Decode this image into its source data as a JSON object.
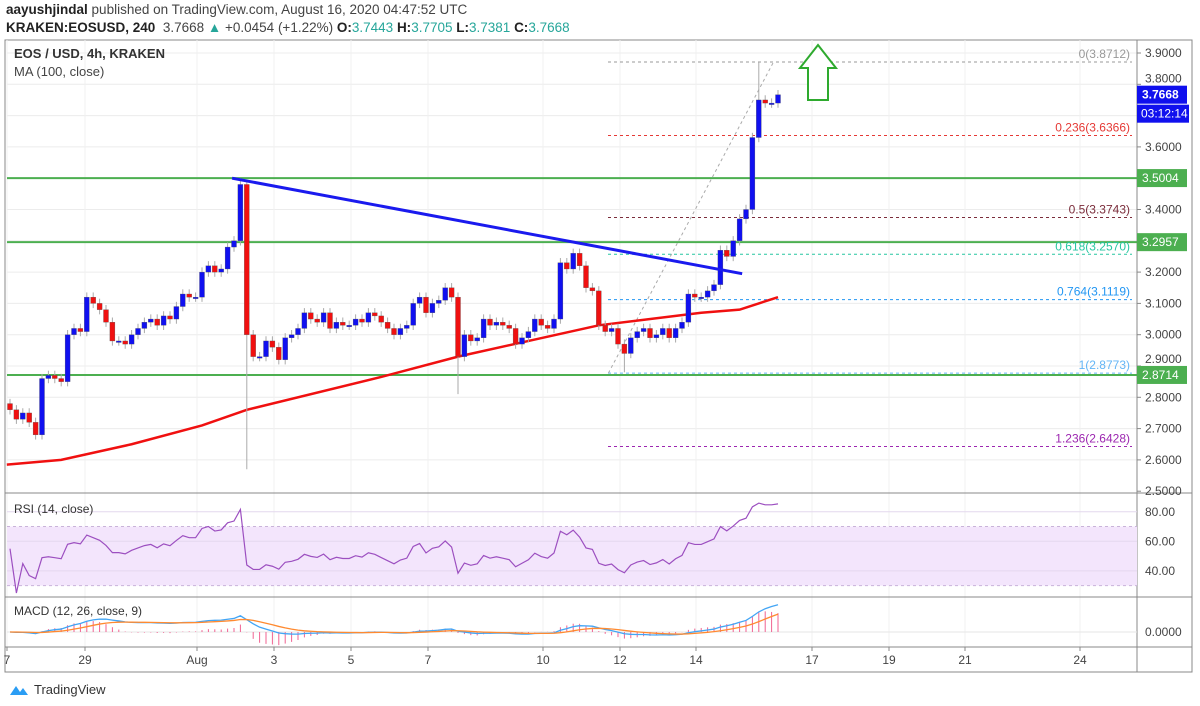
{
  "header": {
    "author": "aayushjindal",
    "published": "published on TradingView.com, August 16, 2020 04:47:52 UTC",
    "symbol": "KRAKEN:EOSUSD, 240",
    "last": "3.7668",
    "change": "+0.0454 (+1.22%)",
    "o_label": "O:",
    "o": "3.7443",
    "h_label": "H:",
    "h": "3.7705",
    "l_label": "L:",
    "l": "3.7381",
    "c_label": "C:",
    "c": "3.7668",
    "up_icon": "triangle-up"
  },
  "legend": {
    "title": "EOS / USD, 4h, KRAKEN",
    "ma": "MA (100, close)",
    "rsi": "RSI (14, close)",
    "macd": "MACD (12, 26, close, 9)"
  },
  "price_axis": {
    "ticks": [
      "3.9000",
      "3.8000",
      "3.6000",
      "3.4000",
      "3.2000",
      "3.1000",
      "3.0000",
      "2.9000",
      "2.8000",
      "2.7000",
      "2.6000",
      "2.5000"
    ],
    "current_price": "3.7668",
    "countdown": "03:12:14",
    "levels": [
      {
        "label": "3.5004",
        "value": 3.5004
      },
      {
        "label": "3.2957",
        "value": 3.2957
      },
      {
        "label": "2.8714",
        "value": 2.8714
      }
    ]
  },
  "rsi_axis": {
    "ticks": [
      "80.00",
      "60.00",
      "40.00"
    ]
  },
  "macd_axis": {
    "ticks": [
      "0.0000"
    ]
  },
  "time_axis": {
    "ticks": [
      "7",
      "29",
      "Aug",
      "3",
      "5",
      "7",
      "10",
      "12",
      "14",
      "17",
      "19",
      "21",
      "24"
    ]
  },
  "fib_levels": [
    {
      "label": "0(3.8712)",
      "value": 3.8712,
      "color": "#999999"
    },
    {
      "label": "0.236(3.6366)",
      "value": 3.6366,
      "color": "#e53935"
    },
    {
      "label": "0.5(3.3743)",
      "value": 3.3743,
      "color": "#7b2d3b"
    },
    {
      "label": "0.618(3.2570)",
      "value": 3.257,
      "color": "#26c6a0"
    },
    {
      "label": "0.764(3.1119)",
      "value": 3.1119,
      "color": "#2196f3"
    },
    {
      "label": "1(2.8773)",
      "value": 2.8773,
      "color": "#64b5f6"
    },
    {
      "label": "1.236(2.6428)",
      "value": 2.6428,
      "color": "#9c27b0"
    }
  ],
  "colors": {
    "up": "#1010f0",
    "down": "#f01010",
    "ma": "#f01010",
    "support": "#4caf50",
    "trendline": "#1a1aee",
    "rsi": "#9c4fc0",
    "rsi_band": "#f3e5fc",
    "macd": "#42a5f5",
    "signal": "#ff8a30",
    "hist": "#f06292",
    "arrow": "#2eaa2e"
  },
  "chart_data": {
    "type": "candlestick",
    "closes": [
      2.76,
      2.73,
      2.75,
      2.72,
      2.68,
      2.86,
      2.87,
      2.86,
      2.85,
      3.0,
      3.02,
      3.01,
      3.12,
      3.1,
      3.08,
      3.04,
      2.98,
      2.98,
      2.97,
      3.0,
      3.02,
      3.04,
      3.05,
      3.03,
      3.06,
      3.05,
      3.09,
      3.13,
      3.12,
      3.12,
      3.2,
      3.22,
      3.2,
      3.21,
      3.28,
      3.3,
      3.48,
      3.0,
      2.93,
      2.93,
      2.98,
      2.96,
      2.92,
      2.99,
      3.0,
      3.02,
      3.07,
      3.05,
      3.04,
      3.07,
      3.02,
      3.04,
      3.03,
      3.03,
      3.05,
      3.04,
      3.07,
      3.06,
      3.04,
      3.02,
      3.0,
      3.02,
      3.03,
      3.1,
      3.12,
      3.07,
      3.1,
      3.11,
      3.15,
      3.12,
      2.93,
      3.0,
      2.98,
      2.99,
      3.05,
      3.03,
      3.04,
      3.03,
      3.02,
      2.97,
      2.99,
      3.01,
      3.05,
      3.03,
      3.02,
      3.05,
      3.23,
      3.21,
      3.26,
      3.22,
      3.15,
      3.14,
      3.03,
      3.01,
      3.02,
      2.97,
      2.94,
      2.99,
      3.01,
      3.02,
      2.99,
      3.0,
      3.02,
      2.99,
      3.02,
      3.04,
      3.13,
      3.12,
      3.12,
      3.14,
      3.16,
      3.27,
      3.25,
      3.3,
      3.37,
      3.4,
      3.63,
      3.75,
      3.74,
      3.74,
      3.7668
    ],
    "wick_extremes": [
      {
        "index": 36,
        "high": 3.5
      },
      {
        "index": 37,
        "low": 2.57
      },
      {
        "index": 70,
        "low": 2.81
      },
      {
        "index": 96,
        "low": 2.88
      },
      {
        "index": 117,
        "high": 3.8712
      }
    ],
    "ma100": [
      [
        -0.5,
        2.585
      ],
      [
        8,
        2.6
      ],
      [
        19,
        2.65
      ],
      [
        30,
        2.71
      ],
      [
        37,
        2.76
      ],
      [
        58,
        2.865
      ],
      [
        70,
        2.93
      ],
      [
        92,
        3.03
      ],
      [
        108,
        3.07
      ],
      [
        114,
        3.08
      ],
      [
        120,
        3.12
      ]
    ],
    "trendline": [
      [
        34.7,
        3.5
      ],
      [
        114.4,
        3.195
      ]
    ],
    "fib_anchor": [
      [
        93.5,
        2.8773
      ],
      [
        119.3,
        3.8712
      ]
    ],
    "ylim": [
      2.5,
      3.9
    ],
    "rsi_ylim": [
      25,
      90
    ]
  },
  "footer": {
    "brand": "TradingView"
  }
}
